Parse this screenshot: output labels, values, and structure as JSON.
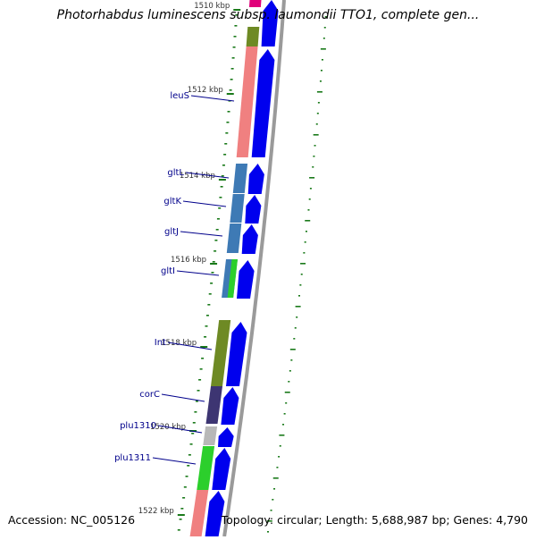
{
  "title": "Photorhabdus luminescens subsp. laumondii TTO1, complete gen...",
  "accession": "Accession: NC_005126",
  "topology": "Topology: circular; Length: 5,688,987 bp; Genes: 4,790",
  "ticks": [
    {
      "label": "1510 kbp",
      "pos_kbp": 1510
    },
    {
      "label": "1512 kbp",
      "pos_kbp": 1512
    },
    {
      "label": "1514 kbp",
      "pos_kbp": 1514
    },
    {
      "label": "1516 kbp",
      "pos_kbp": 1516
    },
    {
      "label": "1518 kbp",
      "pos_kbp": 1518
    },
    {
      "label": "1520 kbp",
      "pos_kbp": 1520
    },
    {
      "label": "1522 kbp",
      "pos_kbp": 1522
    }
  ],
  "gene_labels": [
    {
      "name": "leuS"
    },
    {
      "name": "gltL"
    },
    {
      "name": "gltK"
    },
    {
      "name": "gltJ"
    },
    {
      "name": "gltI"
    },
    {
      "name": "Int"
    },
    {
      "name": "corC"
    },
    {
      "name": "plu1310"
    },
    {
      "name": "plu1311"
    }
  ],
  "colors": {
    "gene_label": "#00008b",
    "tick_mark": "#1a7a1a",
    "tick_text": "#333333",
    "arrow": "#0000ee",
    "backbone": "#9a9a9a",
    "cog_pink": "#e0007a",
    "cog_olive": "#6e8a24",
    "cog_salmon": "#f08080",
    "cog_steelblue": "#3e7ab5",
    "cog_green": "#2ccf2c",
    "cog_purple": "#3d3572",
    "cog_lightgray": "#b8b8b8"
  }
}
